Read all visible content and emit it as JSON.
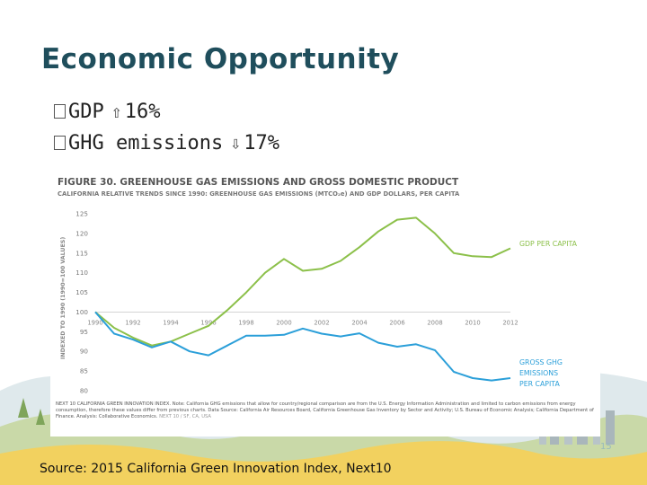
{
  "slide": {
    "title": "Economic Opportunity",
    "bullets": [
      {
        "label": "GDP",
        "arrow": "⇧",
        "value": "16%"
      },
      {
        "label": "GHG emissions",
        "arrow": "⇩",
        "value": "17%"
      }
    ],
    "source": "Source: 2015 California Green Innovation Index, Next10",
    "page_number": "15"
  },
  "colors": {
    "title": "#1f4e5c",
    "gdp": "#8cc04a",
    "ghg": "#2b9fd9",
    "figure_title": "#555555"
  },
  "chart_data": {
    "type": "line",
    "title": "FIGURE 30. GREENHOUSE GAS EMISSIONS AND GROSS DOMESTIC PRODUCT",
    "subtitle": "CALIFORNIA RELATIVE TRENDS SINCE 1990: GREENHOUSE GAS EMISSIONS (MTCO₂e) AND GDP DOLLARS, PER CAPITA",
    "ylabel": "INDEXED TO 1990 (1990=100 VALUES)",
    "xlabel": "",
    "ylim": [
      80,
      125
    ],
    "y_ticks": [
      80,
      85,
      90,
      95,
      100,
      105,
      110,
      115,
      120,
      125
    ],
    "x_tick_labels": [
      "1990",
      "1992",
      "1994",
      "1996",
      "1998",
      "2000",
      "2002",
      "2004",
      "2006",
      "2008",
      "2010",
      "2012"
    ],
    "x": [
      1990,
      1991,
      1992,
      1993,
      1994,
      1995,
      1996,
      1997,
      1998,
      1999,
      2000,
      2001,
      2002,
      2003,
      2004,
      2005,
      2006,
      2007,
      2008,
      2009,
      2010,
      2011,
      2012
    ],
    "series": [
      {
        "name": "GDP PER CAPITA",
        "color": "#8cc04a",
        "values": [
          100,
          96,
          93.5,
          91.5,
          92.5,
          94.5,
          96.5,
          100.5,
          105,
          110,
          113.5,
          110.5,
          111,
          113,
          116.5,
          120.5,
          123.5,
          124,
          120,
          115,
          114.2,
          114,
          116.2
        ]
      },
      {
        "name": "GROSS GHG EMISSIONS PER CAPITA",
        "color": "#2b9fd9",
        "values": [
          100,
          94.5,
          93,
          91,
          92.5,
          90,
          89,
          91.5,
          94,
          94,
          94.2,
          95.8,
          94.5,
          93.8,
          94.6,
          92.2,
          91.2,
          91.8,
          90.3,
          84.8,
          83.2,
          82.6,
          83.2
        ]
      }
    ],
    "notes": "NEXT 10 CALIFORNIA GREEN INNOVATION INDEX. Note: California GHG emissions that allow for country/regional comparison are from the U.S. Energy Information Administration and limited to carbon emissions from energy consumption, therefore these values differ from previous charts. Data Source: California Air Resources Board, California Greenhouse Gas Inventory by Sector and Activity; U.S. Bureau of Economic Analysis; California Department of Finance. Analysis: Collaborative Economics.",
    "footer": "NEXT 10 / SF, CA, USA"
  }
}
